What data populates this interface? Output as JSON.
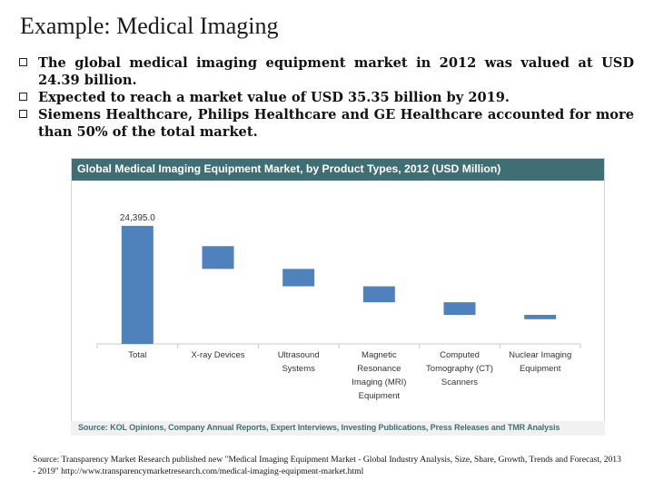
{
  "page": {
    "title": "Example: Medical Imaging",
    "bullets": [
      "The global medical imaging equipment market in 2012 was valued at USD 24.39 billion.",
      "Expected to reach a market value of USD 35.35 billion by 2019.",
      "Siemens Healthcare, Philips Healthcare and GE Healthcare accounted for more than 50% of the total market."
    ],
    "chart_source": "Source: KOL Opinions, Company Annual Reports, Expert Interviews, Investing Publications, Press Releases and TMR Analysis",
    "footnote": "Source: Transparency Market Research published new \"Medical Imaging Equipment Market - Global Industry Analysis, Size, Share, Growth, Trends and Forecast, 2013 - 2019\" http://www.transparencymarketresearch.com/medical-imaging-equipment-market.html"
  },
  "colors": {
    "bar": "#4f81bd",
    "header": "#3f6f75",
    "axis": "#c8c8c8"
  },
  "chart_data": {
    "type": "bar",
    "subtype": "waterfall",
    "title": "Global Medical Imaging Equipment Market, by Product Types, 2012 (USD Million)",
    "xlabel": "",
    "ylabel": "",
    "ylim": [
      0,
      30000
    ],
    "grid": false,
    "categories": [
      "Total",
      "X-ray Devices",
      "Ultrasound Systems",
      "Magnetic Resonance Imaging (MRI) Equipment",
      "Computed Tomography (CT) Scanners",
      "Nuclear Imaging Equipment"
    ],
    "category_lines": [
      [
        "Total"
      ],
      [
        "X-ray Devices"
      ],
      [
        "Ultrasound",
        "Systems"
      ],
      [
        "Magnetic",
        "Resonance",
        "Imaging (MRI)",
        "Equipment"
      ],
      [
        "Computed",
        "Tomography (CT)",
        "Scanners"
      ],
      [
        "Nuclear Imaging",
        "Equipment"
      ]
    ],
    "values": [
      24395.0,
      4700,
      3600,
      3300,
      2600,
      900
    ],
    "floating_ranges": [
      [
        0,
        24395.0
      ],
      [
        15500,
        20200
      ],
      [
        11900,
        15500
      ],
      [
        8600,
        11900
      ],
      [
        6000,
        8600
      ],
      [
        5100,
        6000
      ]
    ],
    "data_labels": [
      "24,395.0",
      "",
      "",
      "",
      "",
      ""
    ]
  }
}
